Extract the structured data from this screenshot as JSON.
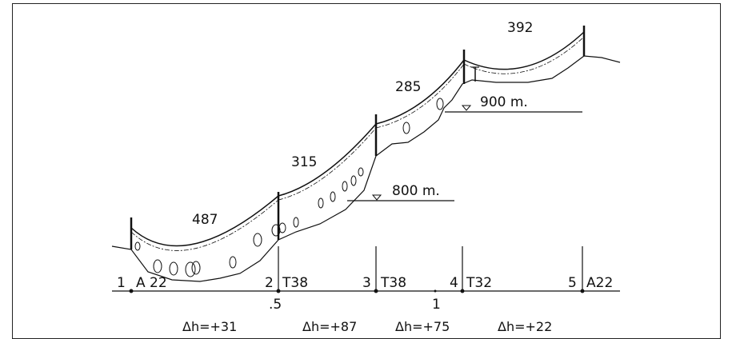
{
  "spans": [
    {
      "value": "487"
    },
    {
      "value": "315"
    },
    {
      "value": "285"
    },
    {
      "value": "392"
    }
  ],
  "water_levels": [
    {
      "label": "800 m."
    },
    {
      "label": "900 m."
    }
  ],
  "towers": [
    {
      "number": "1",
      "type": "A 22"
    },
    {
      "number": "2",
      "type": "T38"
    },
    {
      "number": "3",
      "type": "T38"
    },
    {
      "number": "4",
      "type": "T32"
    },
    {
      "number": "5",
      "type": "A22"
    }
  ],
  "scale": {
    "half": ".5",
    "one": "1"
  },
  "height_diffs": [
    {
      "label": "Δh=+31"
    },
    {
      "label": "Δh=+87"
    },
    {
      "label": "Δh=+75"
    },
    {
      "label": "Δh=+22"
    }
  ]
}
